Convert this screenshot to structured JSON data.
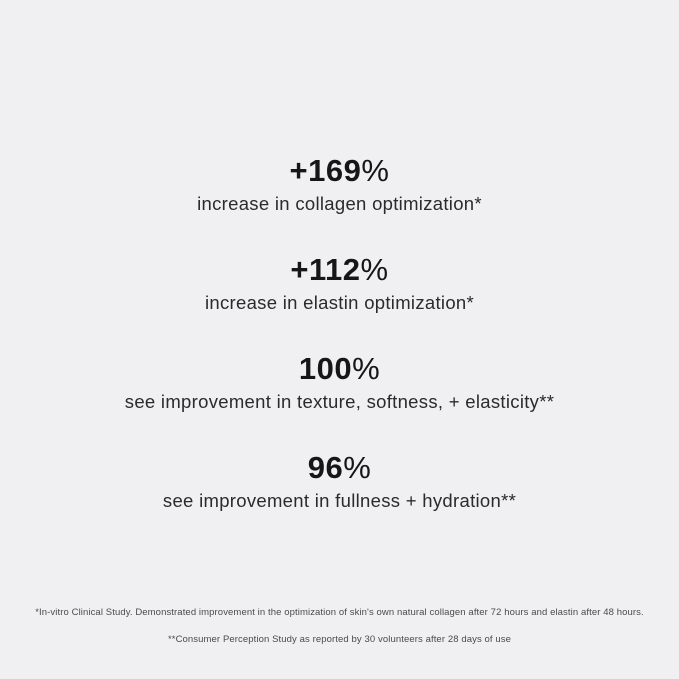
{
  "page": {
    "background_color": "#f0eff1",
    "heading_color": "#161616",
    "label_color": "#2b2b2b",
    "footnote_color": "#4b4b4b"
  },
  "stats": [
    {
      "value": "+169",
      "percent": "%",
      "label": "increase in collagen optimization*"
    },
    {
      "value": "+112",
      "percent": "%",
      "label": "increase in elastin optimization*"
    },
    {
      "value": "100",
      "percent": "%",
      "label": "see improvement in texture, softness, + elasticity**"
    },
    {
      "value": "96",
      "percent": "%",
      "label": "see improvement in fullness + hydration**"
    }
  ],
  "footnotes": [
    "*In-vitro Clinical Study. Demonstrated improvement in the optimization of skin's own natural collagen after 72 hours and elastin after 48 hours.",
    "**Consumer Perception Study as reported by 30 volunteers after 28 days of use"
  ],
  "chart_data": {
    "type": "table",
    "categories": [
      "increase in collagen optimization*",
      "increase in elastin optimization*",
      "see improvement in texture, softness, + elasticity**",
      "see improvement in fullness + hydration**"
    ],
    "values": [
      169,
      112,
      100,
      96
    ],
    "title": "",
    "xlabel": "",
    "ylabel": ""
  }
}
